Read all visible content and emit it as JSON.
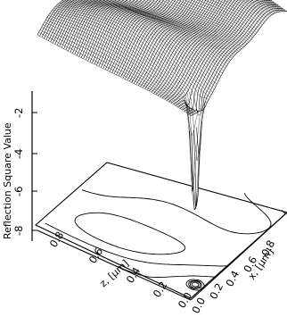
{
  "chart_data": {
    "type": "surface",
    "zlabel": "Reflection Square Value",
    "xlabel": "x, [μm]",
    "ylabel": "z, [μm]",
    "z_ticks": [
      "-2",
      "-4",
      "-6",
      "-8"
    ],
    "x_ticks": [
      "0.0",
      "0.2",
      "0.4",
      "0.6",
      "0.8"
    ],
    "y_ticks": [
      "0.0",
      "0.2",
      "0.4",
      "0.6",
      "0.8"
    ],
    "xlim": [
      0,
      0.9
    ],
    "ylim": [
      0,
      0.9
    ],
    "zlim": [
      -9,
      -1
    ],
    "features": {
      "dip": {
        "x": 0.12,
        "z": 0.05,
        "min_value": -8.5
      },
      "plateau_value": -1.2
    }
  }
}
